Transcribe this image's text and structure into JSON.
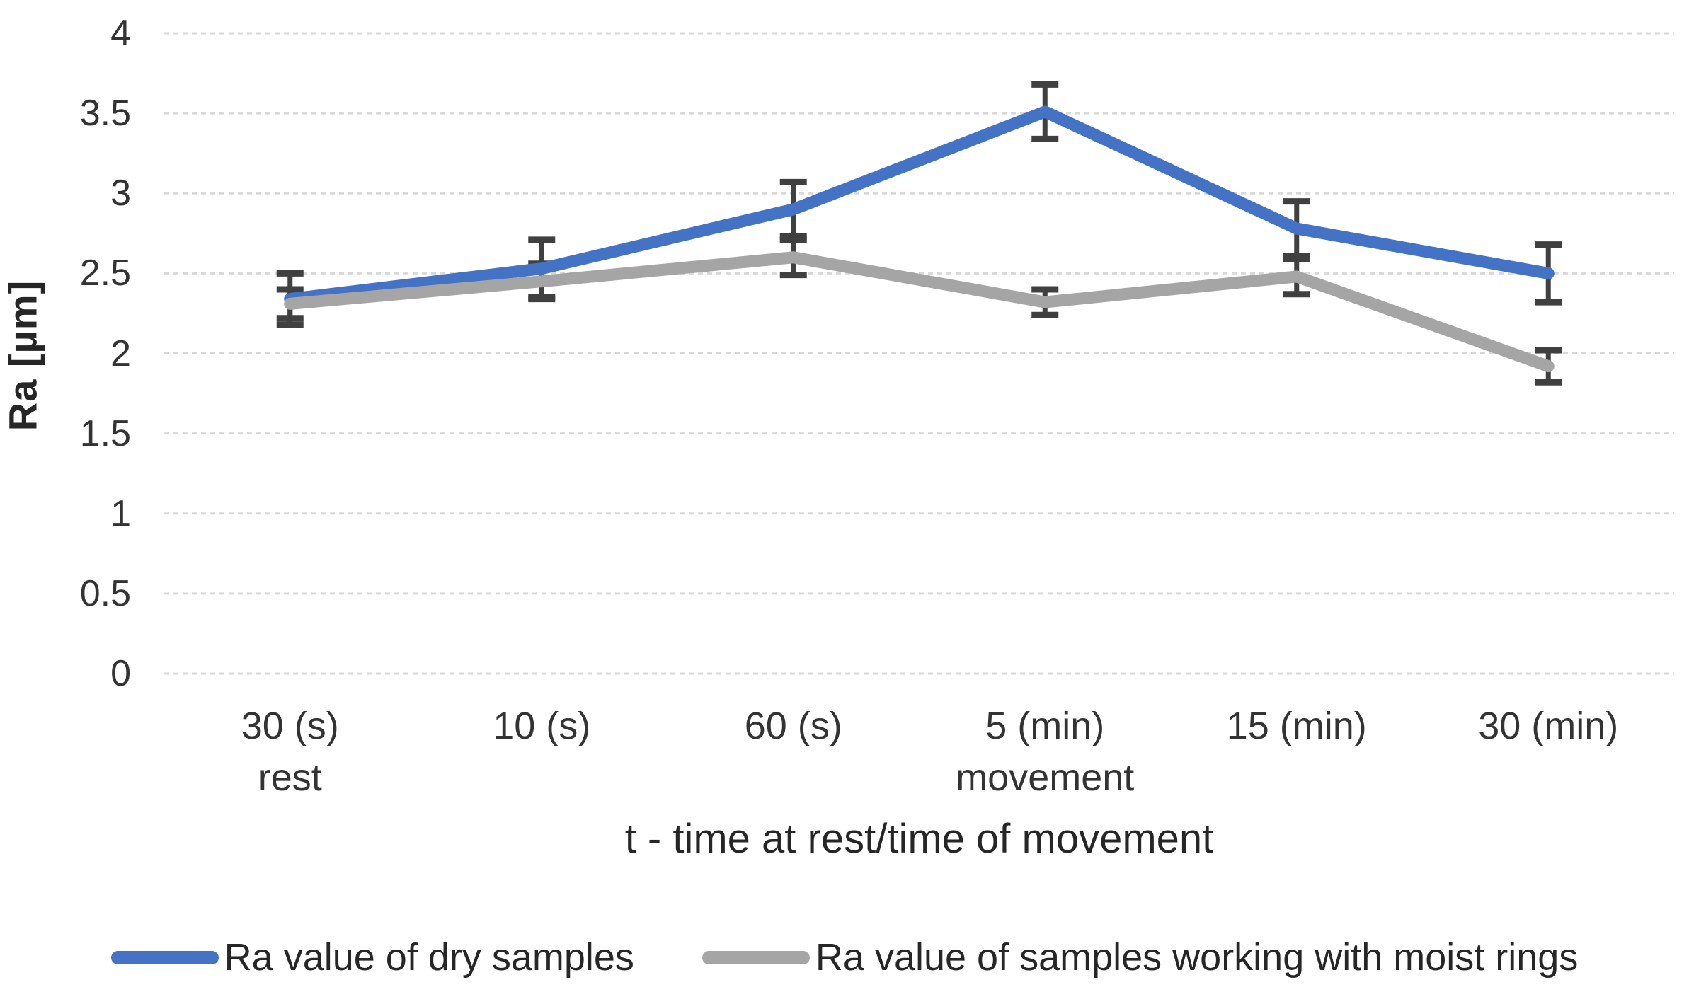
{
  "chart_data": {
    "type": "line",
    "title": "",
    "xlabel": "t - time at rest/time of movement",
    "ylabel": "Ra [µm]",
    "categories": [
      "30 (s)",
      "10 (s)",
      "60 (s)",
      "5 (min)",
      "15 (min)",
      "30 (min)"
    ],
    "category_sublabels": [
      "rest",
      "",
      "",
      "movement",
      "",
      ""
    ],
    "yticks": [
      0,
      0.5,
      1,
      1.5,
      2,
      2.5,
      3,
      3.5,
      4
    ],
    "ylim": [
      0,
      4
    ],
    "grid": "horizontal-dashed",
    "legend_position": "bottom",
    "gridline_color": "#D9D9D9",
    "error_bar_color": "#404040",
    "series": [
      {
        "name": "Ra value of dry samples",
        "color": "#4472C4",
        "values": [
          2.34,
          2.53,
          2.9,
          3.51,
          2.78,
          2.5
        ],
        "errors": [
          0.16,
          0.18,
          0.17,
          0.17,
          0.17,
          0.18
        ]
      },
      {
        "name": "Ra value of samples working with moist rings",
        "color": "#A5A5A5",
        "values": [
          2.31,
          2.45,
          2.6,
          2.32,
          2.48,
          1.92
        ],
        "errors": [
          0.09,
          0.11,
          0.11,
          0.08,
          0.11,
          0.1
        ]
      }
    ]
  }
}
